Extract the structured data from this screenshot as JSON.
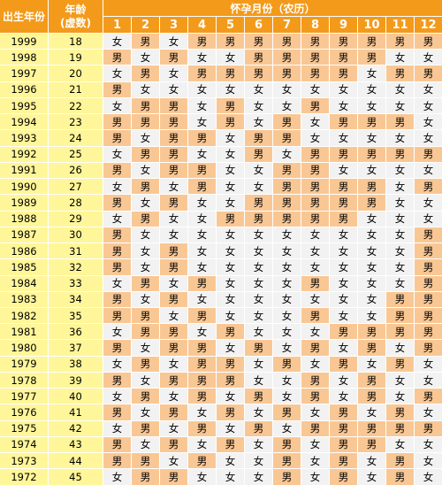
{
  "header": {
    "year_label": "出生年份",
    "age_label_line1": "年龄",
    "age_label_line2": "(虚数)",
    "months_title": "怀孕月份（农历）",
    "months": [
      "1",
      "2",
      "3",
      "4",
      "5",
      "6",
      "7",
      "8",
      "9",
      "10",
      "11",
      "12"
    ]
  },
  "colors": {
    "header_bg": "#f39a1b",
    "year_bg": "#fff699",
    "male_bg": "#f9c794",
    "female_bg": "#f2f2f2"
  },
  "rows": [
    {
      "year": "1999",
      "age": "18",
      "cells": [
        "女",
        "男",
        "女",
        "男",
        "男",
        "男",
        "男",
        "男",
        "男",
        "男",
        "男",
        "男"
      ]
    },
    {
      "year": "1998",
      "age": "19",
      "cells": [
        "男",
        "女",
        "男",
        "女",
        "女",
        "男",
        "男",
        "男",
        "男",
        "男",
        "女",
        "女"
      ]
    },
    {
      "year": "1997",
      "age": "20",
      "cells": [
        "女",
        "男",
        "女",
        "男",
        "男",
        "男",
        "男",
        "男",
        "男",
        "女",
        "男",
        "男"
      ]
    },
    {
      "year": "1996",
      "age": "21",
      "cells": [
        "男",
        "女",
        "女",
        "女",
        "女",
        "女",
        "女",
        "女",
        "女",
        "女",
        "女",
        "女"
      ]
    },
    {
      "year": "1995",
      "age": "22",
      "cells": [
        "女",
        "男",
        "男",
        "女",
        "男",
        "女",
        "女",
        "男",
        "女",
        "女",
        "女",
        "女"
      ]
    },
    {
      "year": "1994",
      "age": "23",
      "cells": [
        "男",
        "男",
        "男",
        "女",
        "男",
        "女",
        "男",
        "女",
        "男",
        "男",
        "男",
        "女"
      ]
    },
    {
      "year": "1993",
      "age": "24",
      "cells": [
        "男",
        "女",
        "男",
        "男",
        "女",
        "男",
        "男",
        "女",
        "女",
        "女",
        "女",
        "女"
      ]
    },
    {
      "year": "1992",
      "age": "25",
      "cells": [
        "女",
        "男",
        "男",
        "女",
        "女",
        "男",
        "女",
        "男",
        "男",
        "男",
        "男",
        "男"
      ]
    },
    {
      "year": "1991",
      "age": "26",
      "cells": [
        "男",
        "女",
        "男",
        "男",
        "女",
        "女",
        "男",
        "男",
        "女",
        "女",
        "女",
        "女"
      ]
    },
    {
      "year": "1990",
      "age": "27",
      "cells": [
        "女",
        "男",
        "女",
        "男",
        "女",
        "女",
        "男",
        "男",
        "男",
        "男",
        "女",
        "男"
      ]
    },
    {
      "year": "1989",
      "age": "28",
      "cells": [
        "男",
        "女",
        "男",
        "女",
        "女",
        "男",
        "男",
        "男",
        "男",
        "男",
        "女",
        "女"
      ]
    },
    {
      "year": "1988",
      "age": "29",
      "cells": [
        "女",
        "男",
        "女",
        "女",
        "男",
        "男",
        "男",
        "男",
        "男",
        "女",
        "女",
        "女"
      ]
    },
    {
      "year": "1987",
      "age": "30",
      "cells": [
        "男",
        "女",
        "女",
        "女",
        "女",
        "女",
        "女",
        "女",
        "女",
        "女",
        "女",
        "男"
      ]
    },
    {
      "year": "1986",
      "age": "31",
      "cells": [
        "男",
        "女",
        "男",
        "女",
        "女",
        "女",
        "女",
        "女",
        "女",
        "女",
        "女",
        "男"
      ]
    },
    {
      "year": "1985",
      "age": "32",
      "cells": [
        "男",
        "女",
        "男",
        "女",
        "女",
        "女",
        "女",
        "女",
        "女",
        "女",
        "女",
        "男"
      ]
    },
    {
      "year": "1984",
      "age": "33",
      "cells": [
        "女",
        "男",
        "女",
        "男",
        "女",
        "女",
        "女",
        "男",
        "女",
        "女",
        "女",
        "男"
      ]
    },
    {
      "year": "1983",
      "age": "34",
      "cells": [
        "男",
        "女",
        "男",
        "女",
        "女",
        "女",
        "女",
        "女",
        "女",
        "女",
        "男",
        "男"
      ]
    },
    {
      "year": "1982",
      "age": "35",
      "cells": [
        "男",
        "男",
        "女",
        "男",
        "女",
        "女",
        "女",
        "男",
        "女",
        "女",
        "男",
        "男"
      ]
    },
    {
      "year": "1981",
      "age": "36",
      "cells": [
        "女",
        "男",
        "男",
        "女",
        "男",
        "女",
        "女",
        "女",
        "男",
        "男",
        "男",
        "男"
      ]
    },
    {
      "year": "1980",
      "age": "37",
      "cells": [
        "男",
        "女",
        "男",
        "男",
        "女",
        "男",
        "女",
        "男",
        "女",
        "男",
        "女",
        "男"
      ]
    },
    {
      "year": "1979",
      "age": "38",
      "cells": [
        "女",
        "男",
        "女",
        "男",
        "男",
        "女",
        "男",
        "女",
        "男",
        "女",
        "男",
        "女"
      ]
    },
    {
      "year": "1978",
      "age": "39",
      "cells": [
        "男",
        "女",
        "男",
        "男",
        "男",
        "女",
        "女",
        "男",
        "女",
        "男",
        "女",
        "女"
      ]
    },
    {
      "year": "1977",
      "age": "40",
      "cells": [
        "女",
        "男",
        "女",
        "男",
        "女",
        "男",
        "女",
        "男",
        "女",
        "男",
        "女",
        "男"
      ]
    },
    {
      "year": "1976",
      "age": "41",
      "cells": [
        "男",
        "女",
        "男",
        "女",
        "男",
        "女",
        "男",
        "女",
        "男",
        "女",
        "男",
        "女"
      ]
    },
    {
      "year": "1975",
      "age": "42",
      "cells": [
        "女",
        "男",
        "女",
        "男",
        "女",
        "男",
        "女",
        "男",
        "男",
        "男",
        "男",
        "男"
      ]
    },
    {
      "year": "1974",
      "age": "43",
      "cells": [
        "男",
        "女",
        "男",
        "女",
        "男",
        "女",
        "男",
        "女",
        "男",
        "男",
        "女",
        "女"
      ]
    },
    {
      "year": "1973",
      "age": "44",
      "cells": [
        "男",
        "男",
        "女",
        "男",
        "女",
        "女",
        "男",
        "女",
        "男",
        "女",
        "男",
        "女"
      ]
    },
    {
      "year": "1972",
      "age": "45",
      "cells": [
        "女",
        "男",
        "男",
        "女",
        "女",
        "女",
        "男",
        "女",
        "男",
        "女",
        "男",
        "女"
      ]
    }
  ]
}
